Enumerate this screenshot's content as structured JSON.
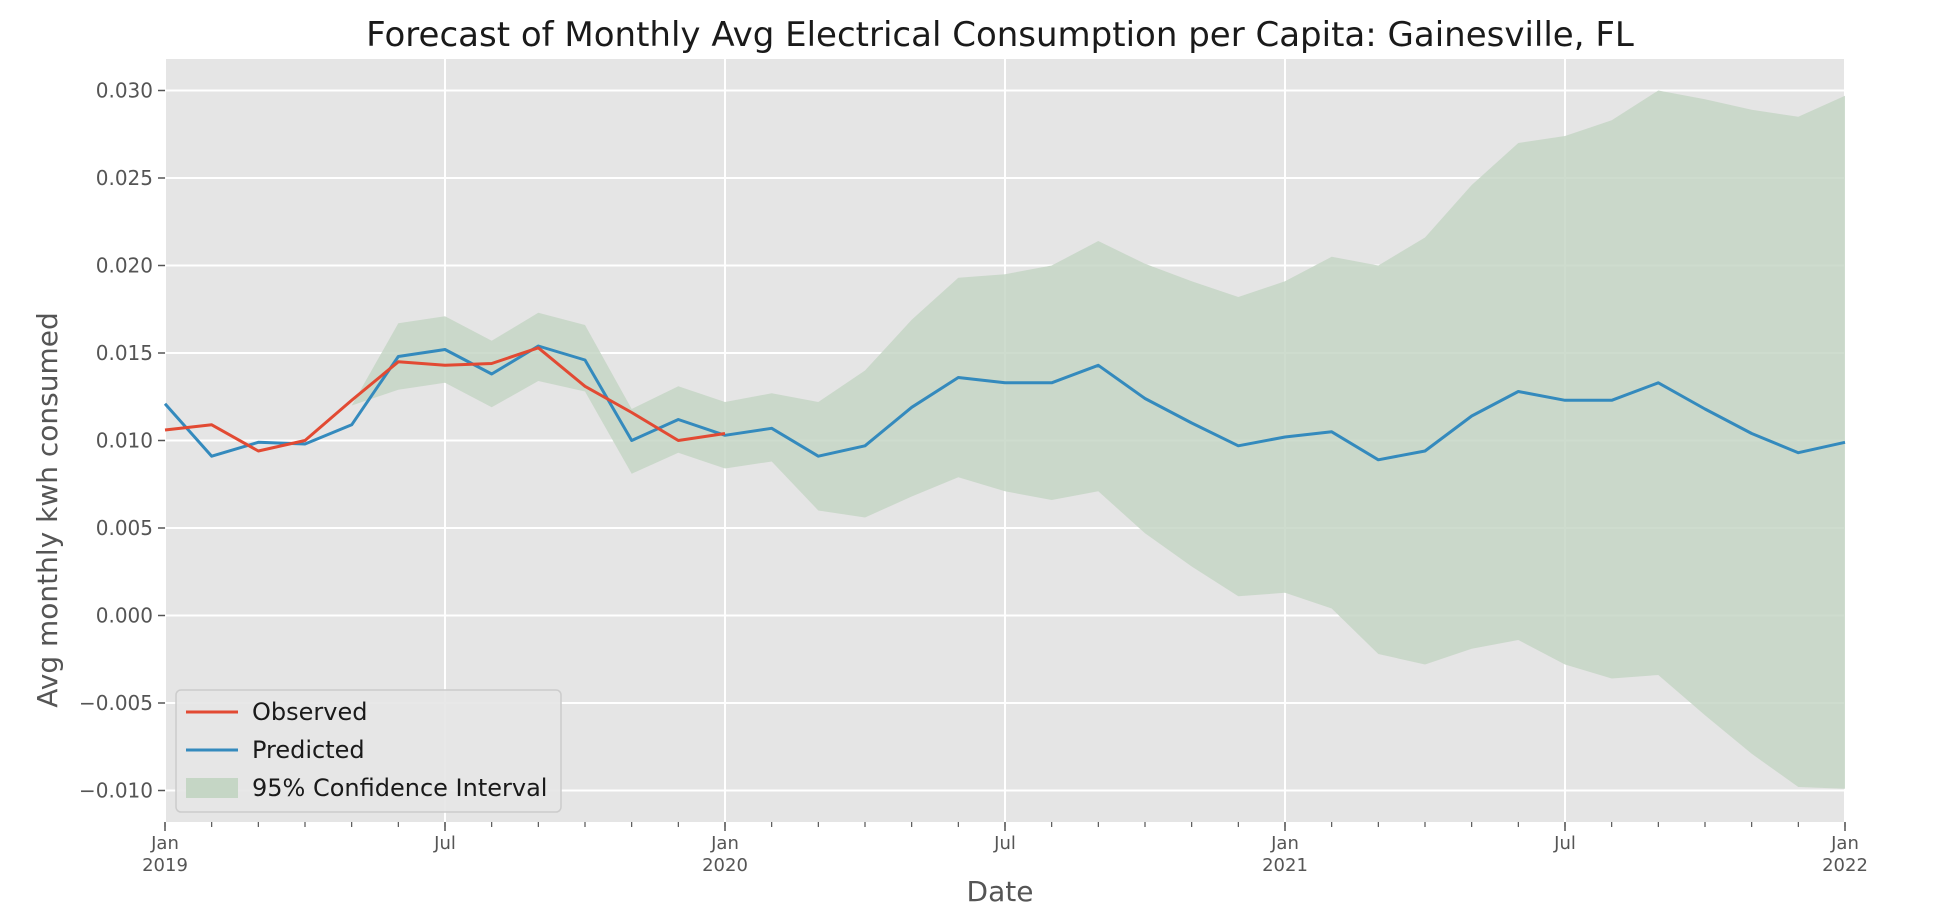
{
  "chart_data": {
    "type": "line",
    "title": "Forecast of Monthly Avg Electrical Consumption per Capita: Gainesville, FL",
    "xlabel": "Date",
    "ylabel": "Avg monthly kwh consumed",
    "x_range": [
      "2019-01",
      "2022-01"
    ],
    "ylim": [
      -0.0118,
      0.0318
    ],
    "y_ticks": [
      "0.030",
      "0.025",
      "0.020",
      "0.015",
      "0.010",
      "0.005",
      "0.000",
      "−0.005",
      "−0.010"
    ],
    "y_tick_values": [
      0.03,
      0.025,
      0.02,
      0.015,
      0.01,
      0.005,
      0.0,
      -0.005,
      -0.01
    ],
    "x_ticks": [
      {
        "month": "Jan",
        "year": "2019",
        "date": "2019-01"
      },
      {
        "month": "Jul",
        "year": "",
        "date": "2019-07"
      },
      {
        "month": "Jan",
        "year": "2020",
        "date": "2020-01"
      },
      {
        "month": "Jul",
        "year": "",
        "date": "2020-07"
      },
      {
        "month": "Jan",
        "year": "2021",
        "date": "2021-01"
      },
      {
        "month": "Jul",
        "year": "",
        "date": "2021-07"
      },
      {
        "month": "Jan",
        "year": "2022",
        "date": "2022-01"
      }
    ],
    "grid": true,
    "legend_position": "lower-left",
    "series": [
      {
        "name": "Observed",
        "color": "#e24a33",
        "start": "2019-01",
        "values": [
          0.0106,
          0.0109,
          0.0094,
          0.01,
          0.0123,
          0.0145,
          0.0143,
          0.0144,
          0.0153,
          0.0131,
          0.0116,
          0.01,
          0.0104
        ]
      },
      {
        "name": "Predicted",
        "color": "#348abd",
        "start": "2019-01",
        "values": [
          0.0121,
          0.0091,
          0.0099,
          0.0098,
          0.0109,
          0.0148,
          0.0152,
          0.0138,
          0.0154,
          0.0146,
          0.01,
          0.0112,
          0.0103,
          0.0107,
          0.0091,
          0.0097,
          0.0119,
          0.0136,
          0.0133,
          0.0133,
          0.0143,
          0.0124,
          0.011,
          0.0097,
          0.0102,
          0.0105,
          0.0089,
          0.0094,
          0.0114,
          0.0128,
          0.0123,
          0.0123,
          0.0133,
          0.0118,
          0.0104,
          0.0093,
          0.0099
        ]
      }
    ],
    "confidence_interval": {
      "name": "95% Confidence Interval",
      "color": "#c5d6c5",
      "start": "2019-05",
      "upper": [
        0.012,
        0.0167,
        0.0171,
        0.0157,
        0.0173,
        0.0166,
        0.0118,
        0.0131,
        0.0122,
        0.0127,
        0.0122,
        0.014,
        0.0169,
        0.0193,
        0.0195,
        0.02,
        0.0214,
        0.0201,
        0.0191,
        0.0182,
        0.0191,
        0.0205,
        0.02,
        0.0216,
        0.0246,
        0.027,
        0.0274,
        0.0283,
        0.03,
        0.0295,
        0.0289,
        0.0285,
        0.0297
      ],
      "lower": [
        0.012,
        0.0129,
        0.0133,
        0.0119,
        0.0134,
        0.0128,
        0.0081,
        0.0093,
        0.0084,
        0.0088,
        0.006,
        0.0056,
        0.0068,
        0.0079,
        0.0071,
        0.0066,
        0.0071,
        0.0047,
        0.0028,
        0.0011,
        0.0013,
        0.0004,
        -0.0022,
        -0.0028,
        -0.0019,
        -0.0014,
        -0.0028,
        -0.0036,
        -0.0034,
        -0.0057,
        -0.0079,
        -0.0098,
        -0.0099
      ]
    }
  },
  "style": {
    "plot_background": "#e5e5e5",
    "grid_color": "#ffffff"
  }
}
